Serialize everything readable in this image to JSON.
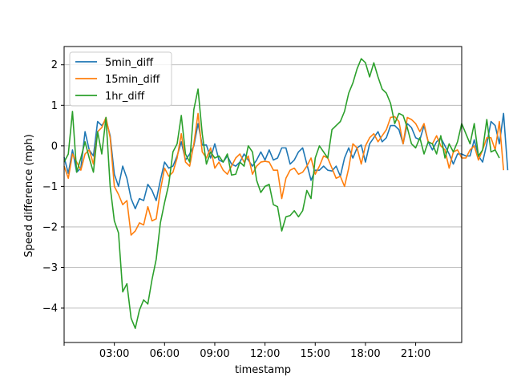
{
  "chart_data": {
    "type": "line",
    "xlabel": "timestamp",
    "ylabel": "Speed difference (mph)",
    "ylim": [
      -4.85,
      2.45
    ],
    "xlim": [
      "00:00",
      "23:45"
    ],
    "x_step_minutes": 15,
    "grid": "horizontal",
    "legend_position": "top-left",
    "x_ticks": [
      "03:00",
      "06:00",
      "09:00",
      "12:00",
      "15:00",
      "18:00",
      "21:00"
    ],
    "y_ticks": [
      "−4",
      "−3",
      "−2",
      "−1",
      "0",
      "1",
      "2"
    ],
    "y_tick_values": [
      -4,
      -3,
      -2,
      -1,
      0,
      1,
      2
    ],
    "series": [
      {
        "name": "5min_diff",
        "color": "#1f77b4",
        "values": [
          -0.28,
          -0.68,
          -0.1,
          -0.65,
          -0.55,
          0.35,
          -0.1,
          -0.25,
          0.6,
          0.5,
          0.65,
          0.25,
          -0.7,
          -1.0,
          -0.5,
          -0.8,
          -1.3,
          -1.55,
          -1.3,
          -1.35,
          -0.95,
          -1.1,
          -1.35,
          -0.85,
          -0.4,
          -0.55,
          -0.5,
          -0.25,
          0.1,
          -0.35,
          -0.2,
          0.0,
          0.55,
          0.02,
          0.02,
          -0.3,
          0.05,
          -0.35,
          -0.4,
          -0.25,
          -0.45,
          -0.5,
          -0.4,
          -0.2,
          -0.35,
          -0.5,
          -0.35,
          -0.15,
          -0.35,
          -0.1,
          -0.35,
          -0.3,
          -0.05,
          -0.05,
          -0.45,
          -0.35,
          -0.15,
          -0.05,
          -0.45,
          -0.85,
          -0.6,
          -0.6,
          -0.5,
          -0.6,
          -0.62,
          -0.5,
          -0.75,
          -0.3,
          -0.05,
          -0.3,
          -0.05,
          0.02,
          -0.4,
          0.05,
          0.2,
          0.35,
          0.1,
          0.2,
          0.5,
          0.5,
          0.4,
          0.05,
          0.55,
          0.45,
          0.2,
          0.15,
          0.5,
          0.1,
          -0.1,
          0.1,
          0.2,
          0.0,
          -0.2,
          -0.45,
          -0.2,
          -0.2,
          -0.25,
          -0.25,
          0.15,
          -0.25,
          -0.4,
          0.05,
          0.6,
          0.5,
          0.05,
          0.8,
          -0.6
        ],
        "display_max_reading": 0.8
      },
      {
        "name": "15min_diff",
        "color": "#ff7f0e",
        "values": [
          -0.5,
          -0.8,
          -0.2,
          -0.4,
          -0.6,
          -0.2,
          -0.1,
          -0.45,
          0.35,
          0.45,
          0.7,
          0.2,
          -1.0,
          -1.2,
          -1.45,
          -1.35,
          -2.2,
          -2.1,
          -1.9,
          -1.95,
          -1.5,
          -1.85,
          -1.8,
          -1.1,
          -0.55,
          -0.75,
          -0.65,
          -0.3,
          0.3,
          -0.4,
          -0.5,
          0.05,
          0.8,
          -0.15,
          -0.3,
          -0.05,
          -0.55,
          -0.4,
          -0.6,
          -0.7,
          -0.5,
          -0.3,
          -0.2,
          -0.4,
          -0.25,
          -0.7,
          -0.5,
          -0.4,
          -0.38,
          -0.4,
          -0.6,
          -0.6,
          -1.3,
          -0.8,
          -0.6,
          -0.55,
          -0.7,
          -0.65,
          -0.5,
          -0.3,
          -0.7,
          -0.5,
          -0.25,
          -0.3,
          -0.55,
          -0.8,
          -0.75,
          -1.0,
          -0.55,
          0.05,
          -0.05,
          -0.45,
          0.0,
          0.2,
          0.3,
          0.1,
          0.25,
          0.4,
          0.7,
          0.72,
          0.6,
          0.05,
          0.7,
          0.65,
          0.55,
          0.35,
          0.55,
          0.1,
          0.05,
          0.25,
          0.0,
          -0.1,
          -0.55,
          -0.15,
          -0.1,
          -0.3,
          -0.3,
          -0.1,
          0.0,
          -0.35,
          -0.1,
          0.2,
          0.2,
          -0.1,
          0.6,
          -0.6
        ],
        "display_max_reading": 0.8
      },
      {
        "name": "1hr_diff",
        "color": "#2ca02c",
        "values": [
          -0.4,
          -0.2,
          0.85,
          -0.65,
          -0.3,
          0.1,
          -0.3,
          -0.65,
          0.35,
          -0.2,
          0.7,
          -1.0,
          -1.85,
          -2.15,
          -3.6,
          -3.4,
          -4.25,
          -4.5,
          -4.05,
          -3.8,
          -3.9,
          -3.3,
          -2.8,
          -1.9,
          -1.4,
          -0.95,
          -0.15,
          0.05,
          0.75,
          -0.2,
          -0.4,
          0.9,
          1.4,
          0.3,
          -0.45,
          -0.15,
          -0.3,
          -0.25,
          -0.4,
          -0.2,
          -0.72,
          -0.7,
          -0.4,
          -0.5,
          0.0,
          -0.15,
          -0.85,
          -1.15,
          -1.0,
          -0.95,
          -1.45,
          -1.5,
          -2.1,
          -1.75,
          -1.72,
          -1.6,
          -1.75,
          -1.6,
          -1.1,
          -1.3,
          -0.3,
          0.0,
          -0.15,
          -0.3,
          0.4,
          0.5,
          0.6,
          0.85,
          1.3,
          1.55,
          1.9,
          2.15,
          2.05,
          1.7,
          2.05,
          1.7,
          1.4,
          1.3,
          1.05,
          0.55,
          0.8,
          0.75,
          0.45,
          0.05,
          -0.05,
          0.2,
          -0.2,
          0.1,
          0.05,
          -0.2,
          0.25,
          -0.3,
          0.05,
          -0.15,
          0.1,
          0.55,
          0.3,
          0.05,
          0.55,
          -0.25,
          -0.1,
          0.65,
          -0.15,
          -0.1,
          -0.3
        ],
        "display_max_reading": 2.15
      }
    ]
  },
  "colors": {
    "axis": "#000000",
    "grid": "#b0b0b0",
    "legend_frame": "#cccccc",
    "background": "#ffffff"
  }
}
